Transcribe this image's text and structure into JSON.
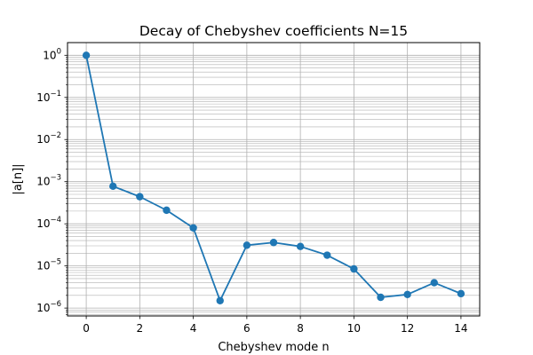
{
  "chart_data": {
    "type": "line",
    "title": "Decay of Chebyshev coefficients N=15",
    "xlabel": "Chebyshev mode n",
    "ylabel": "|a[n]|",
    "yscale": "log",
    "grid": true,
    "grid_minor": true,
    "markers": true,
    "xlim": [
      -0.7,
      14.7
    ],
    "ylim": [
      6.5e-07,
      2.0
    ],
    "x_ticks": [
      0,
      2,
      4,
      6,
      8,
      10,
      12,
      14
    ],
    "y_ticks": [
      {
        "exp": 0,
        "base": "10",
        "sup": "0"
      },
      {
        "exp": -1,
        "base": "10",
        "sup": "−1"
      },
      {
        "exp": -2,
        "base": "10",
        "sup": "−2"
      },
      {
        "exp": -3,
        "base": "10",
        "sup": "−3"
      },
      {
        "exp": -4,
        "base": "10",
        "sup": "−4"
      },
      {
        "exp": -5,
        "base": "10",
        "sup": "−5"
      },
      {
        "exp": -6,
        "base": "10",
        "sup": "−6"
      }
    ],
    "x": [
      0,
      1,
      2,
      3,
      4,
      5,
      6,
      7,
      8,
      9,
      10,
      11,
      12,
      13,
      14
    ],
    "series": [
      {
        "values": [
          1.0,
          0.00078,
          0.00044,
          0.00021,
          8e-05,
          1.5e-06,
          3.1e-05,
          3.6e-05,
          2.9e-05,
          1.8e-05,
          8.5e-06,
          1.8e-06,
          2.1e-06,
          4e-06,
          2.2e-06
        ],
        "color": "#1f77b4"
      }
    ]
  }
}
